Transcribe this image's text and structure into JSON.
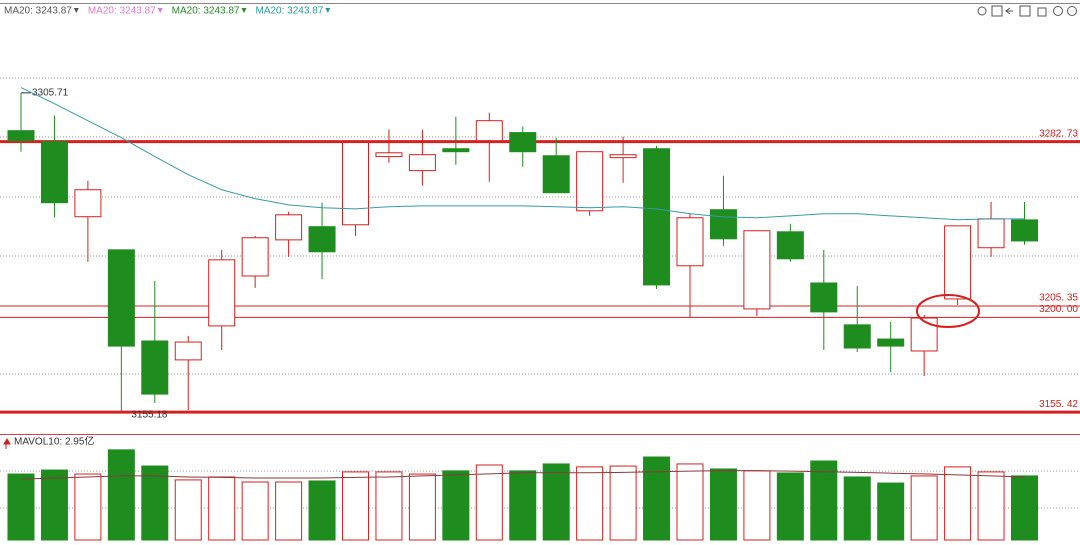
{
  "chart_data": [
    {
      "type": "candlestick",
      "legend": [
        {
          "name": "MA20: 3243.87",
          "color": "#555555"
        },
        {
          "name": "MA20: 3243.87",
          "color": "#e07ad0"
        },
        {
          "name": "MA20: 3243.87",
          "color": "#2a8a2a"
        },
        {
          "name": "MA20: 3243.87",
          "color": "#2a9aa0"
        }
      ],
      "ylim": [
        3147,
        3340
      ],
      "up_color": "#d62020",
      "down_color": "#1e8c1e",
      "open": [
        3287.9,
        3282.7,
        3247.4,
        3231.8,
        3188.9,
        3180.0,
        3196.0,
        3219.5,
        3236.5,
        3242.7,
        3243.6,
        3275.7,
        3269.1,
        3279.4,
        3283.2,
        3287.0,
        3276.1,
        3250.2,
        3275.2,
        3279.4,
        3224.3,
        3250.7,
        3204.0,
        3240.3,
        3216.2,
        3196.5,
        3189.8,
        3184.2,
        3208.7,
        3232.8,
        3245.9
      ],
      "high": [
        3305.71,
        3295.0,
        3264.3,
        3231.8,
        3217.2,
        3191.3,
        3231.8,
        3238.4,
        3249.7,
        3254.0,
        3283.2,
        3288.4,
        3288.4,
        3294.5,
        3296.4,
        3289.8,
        3284.6,
        3278.0,
        3285.1,
        3280.8,
        3248.8,
        3266.7,
        3240.8,
        3244.1,
        3231.8,
        3214.8,
        3197.9,
        3201.2,
        3243.1,
        3254.4,
        3254.4
      ],
      "low": [
        3278.0,
        3247.0,
        3226.2,
        3155.18,
        3159.7,
        3156.4,
        3184.7,
        3213.9,
        3228.5,
        3218.1,
        3238.4,
        3272.8,
        3262.0,
        3271.9,
        3263.9,
        3270.9,
        3258.7,
        3247.8,
        3263.4,
        3213.4,
        3199.7,
        3233.7,
        3200.7,
        3226.2,
        3184.7,
        3183.7,
        3174.3,
        3172.4,
        3205.9,
        3228.5,
        3234.2
      ],
      "close": [
        3283.2,
        3254.0,
        3260.1,
        3186.5,
        3163.9,
        3188.4,
        3227.1,
        3237.5,
        3248.3,
        3230.9,
        3282.3,
        3277.5,
        3276.6,
        3278.0,
        3292.6,
        3278.0,
        3258.7,
        3278.0,
        3276.6,
        3215.3,
        3246.9,
        3237.0,
        3240.8,
        3227.6,
        3202.6,
        3185.6,
        3186.5,
        3199.7,
        3243.1,
        3246.4,
        3236.0
      ],
      "ma": {
        "color": "#3a9aa8",
        "values": [
          3308.2,
          3300.6,
          3292.6,
          3284.6,
          3275.7,
          3267.2,
          3260.1,
          3255.9,
          3253.0,
          3251.6,
          3251.1,
          3252.1,
          3252.5,
          3252.5,
          3252.5,
          3252.5,
          3252.1,
          3251.6,
          3252.1,
          3251.1,
          3248.8,
          3247.3,
          3246.9,
          3247.8,
          3248.8,
          3248.8,
          3247.8,
          3246.9,
          3246.0,
          3246.4,
          3246.4
        ]
      },
      "levels": [
        {
          "value": 3282.73,
          "label": "3282. 73",
          "thick": true
        },
        {
          "value": 3205.35,
          "label": "3205. 35",
          "thick": false
        },
        {
          "value": 3200.0,
          "label": "3200. 00",
          "thick": false
        },
        {
          "value": 3155.42,
          "label": "3155. 42",
          "thick": true
        }
      ]
    },
    {
      "type": "bar",
      "title": "MAVOL10: 2.95亿",
      "ylim": [
        0,
        4.95
      ],
      "values": [
        3.14,
        3.33,
        3.14,
        4.29,
        3.52,
        2.86,
        3.0,
        2.76,
        2.76,
        2.81,
        3.24,
        3.24,
        3.14,
        3.29,
        3.57,
        3.29,
        3.62,
        3.48,
        3.52,
        3.95,
        3.62,
        3.38,
        3.29,
        3.19,
        3.76,
        3.0,
        2.71,
        3.05,
        3.48,
        3.24,
        3.05
      ],
      "ma": {
        "color": "#8b3a3a",
        "values": [
          2.9,
          2.95,
          3.0,
          3.05,
          3.05,
          3.0,
          2.98,
          2.95,
          2.95,
          2.95,
          2.98,
          3.0,
          3.05,
          3.1,
          3.15,
          3.2,
          3.2,
          3.2,
          3.22,
          3.25,
          3.28,
          3.3,
          3.3,
          3.28,
          3.25,
          3.22,
          3.18,
          3.15,
          3.1,
          3.05,
          3.0
        ]
      }
    }
  ]
}
